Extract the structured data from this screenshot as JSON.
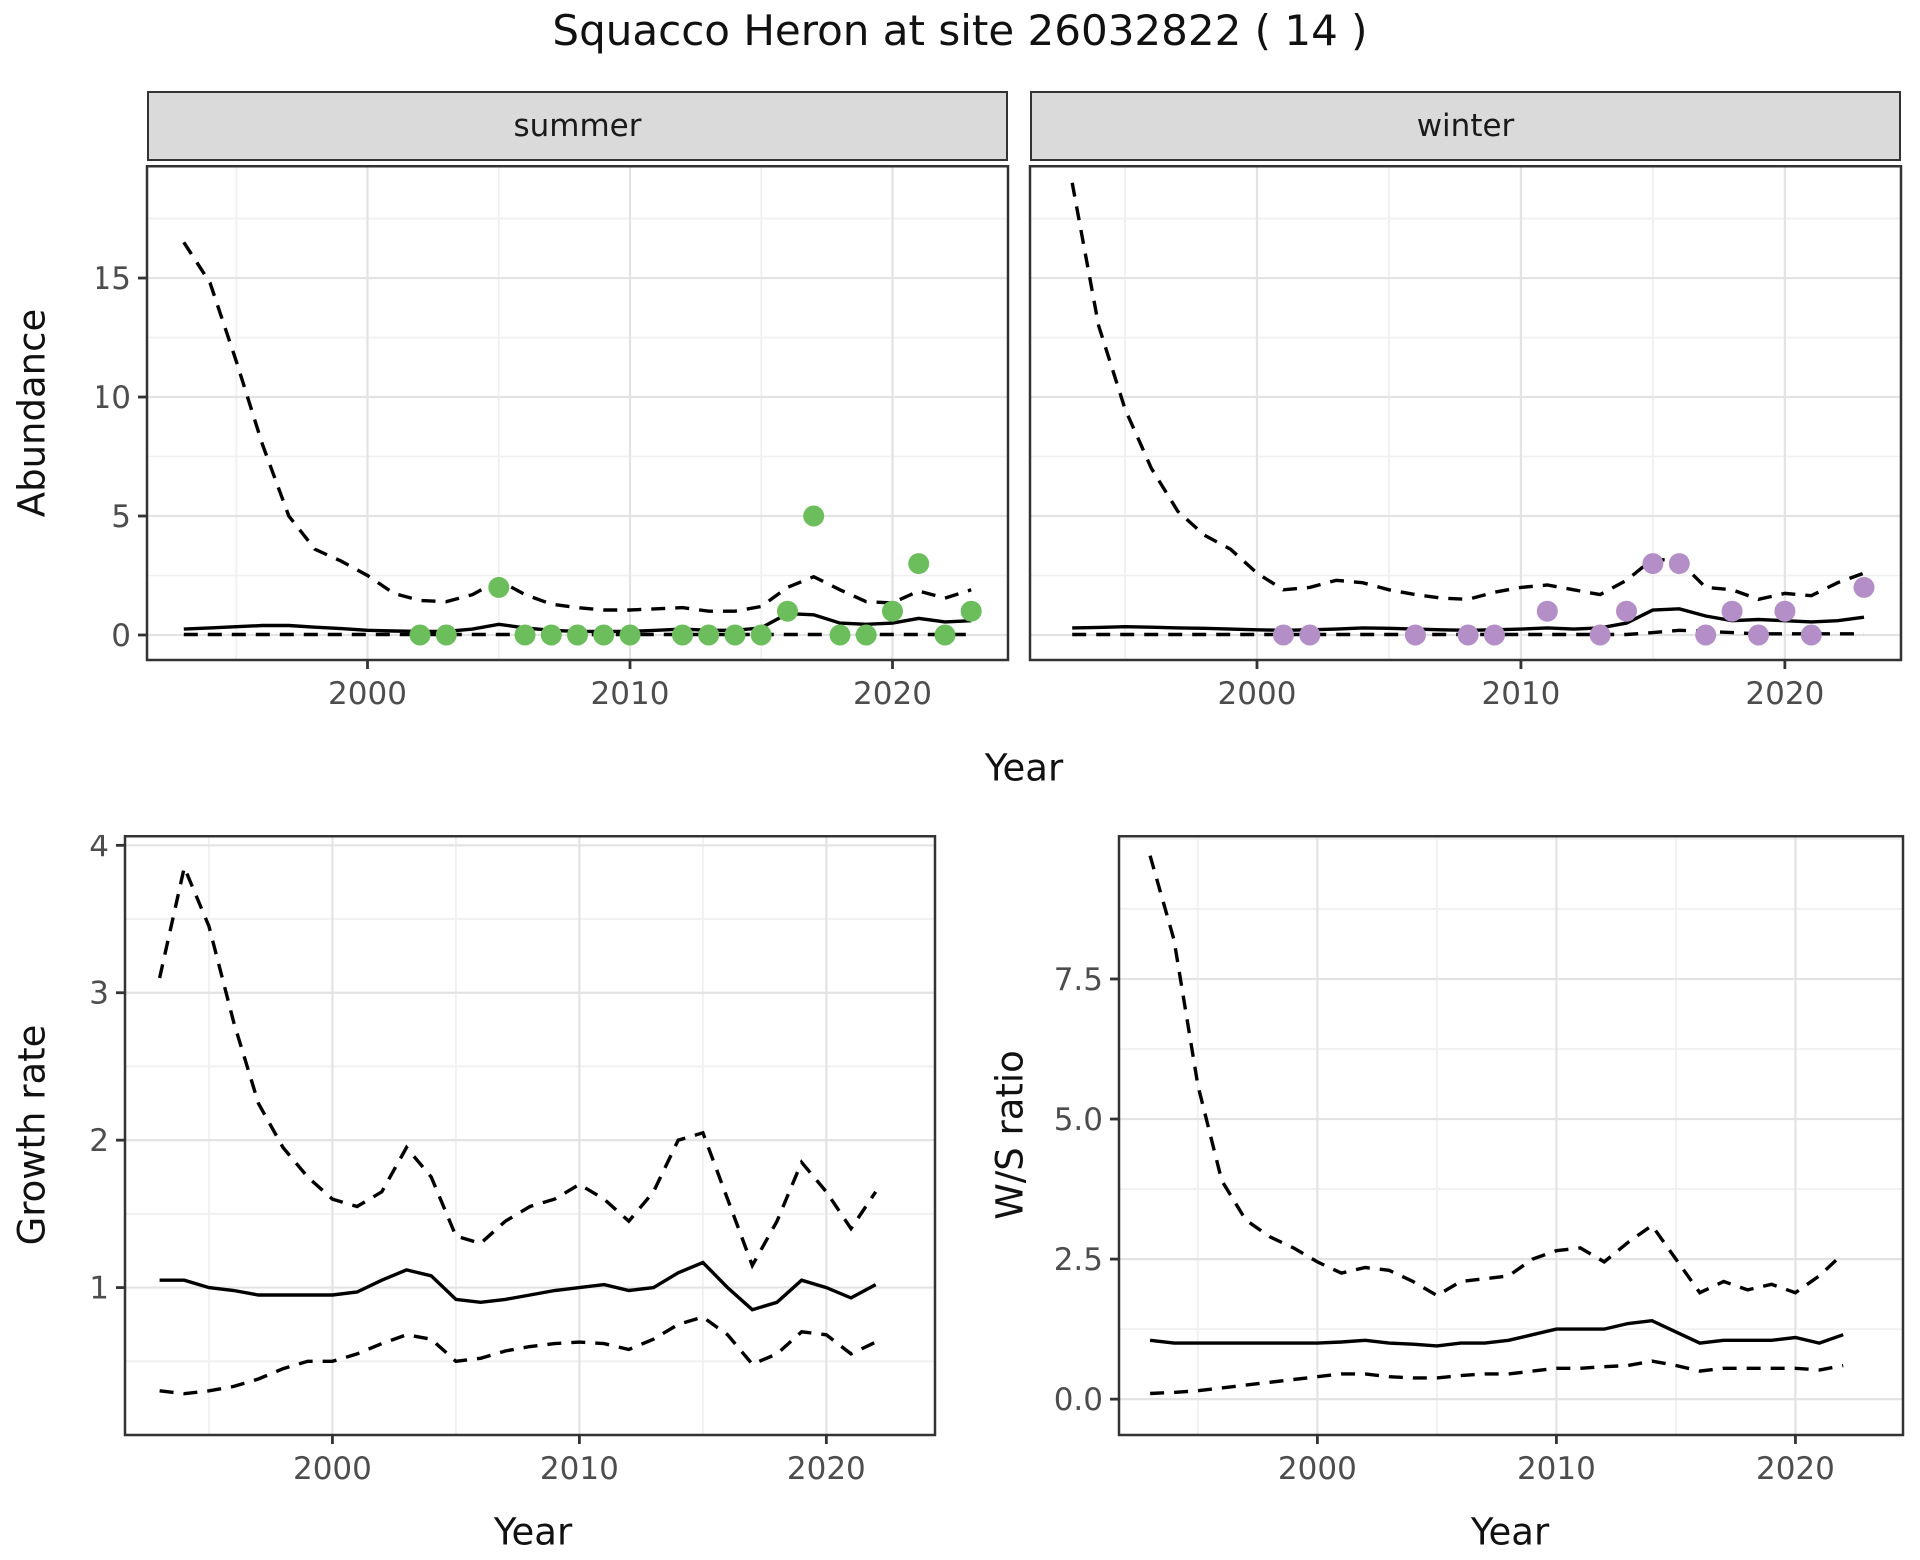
{
  "title": "Squacco Heron at site 26032822 ( 14 )",
  "colors": {
    "summer_point": "#6CBE5C",
    "winter_point": "#B48FC7",
    "line": "#000000",
    "panel_border": "#333333",
    "strip_fill": "#DADADA",
    "grid_major": "#E3E3E3",
    "grid_minor": "#F0F0F0",
    "tick_text": "#4D4D4D"
  },
  "chart_data": [
    {
      "id": "abundance-summer",
      "type": "line",
      "facet_label": "summer",
      "xlabel": "Year",
      "ylabel": "Abundance",
      "xlim": [
        1991.6,
        2024.4
      ],
      "ylim": [
        -1.05,
        19.75
      ],
      "x_ticks": [
        {
          "v": 2000,
          "label": "2000"
        },
        {
          "v": 2010,
          "label": "2010"
        },
        {
          "v": 2020,
          "label": "2020"
        }
      ],
      "x_minor": [
        1995,
        2005,
        2015,
        2025
      ],
      "y_ticks": [
        {
          "v": 0,
          "label": "0"
        },
        {
          "v": 5,
          "label": "5"
        },
        {
          "v": 10,
          "label": "10"
        },
        {
          "v": 15,
          "label": "15"
        }
      ],
      "y_minor": [
        2.5,
        7.5,
        12.5,
        17.5
      ],
      "show_y_labels": true,
      "grid": true,
      "legend": "none",
      "years": [
        1993,
        1994,
        1995,
        1996,
        1997,
        1998,
        1999,
        2000,
        2001,
        2002,
        2003,
        2004,
        2005,
        2006,
        2007,
        2008,
        2009,
        2010,
        2011,
        2012,
        2013,
        2014,
        2015,
        2016,
        2017,
        2018,
        2019,
        2020,
        2021,
        2022,
        2023
      ],
      "series": [
        {
          "name": "median",
          "style": "solid",
          "values": [
            0.25,
            0.3,
            0.35,
            0.4,
            0.4,
            0.33,
            0.27,
            0.2,
            0.17,
            0.15,
            0.15,
            0.25,
            0.45,
            0.3,
            0.2,
            0.15,
            0.15,
            0.15,
            0.2,
            0.25,
            0.2,
            0.2,
            0.3,
            0.9,
            0.85,
            0.5,
            0.45,
            0.5,
            0.7,
            0.55,
            0.6
          ]
        },
        {
          "name": "upper_95ci",
          "style": "dashed",
          "values": [
            16.5,
            14.8,
            11.5,
            8.0,
            5.0,
            3.6,
            3.1,
            2.5,
            1.75,
            1.45,
            1.4,
            1.7,
            2.3,
            1.7,
            1.3,
            1.15,
            1.05,
            1.05,
            1.1,
            1.15,
            1.0,
            1.0,
            1.2,
            2.0,
            2.45,
            1.9,
            1.4,
            1.35,
            1.85,
            1.55,
            1.9
          ]
        },
        {
          "name": "lower_95ci",
          "style": "dashed",
          "values": [
            0.02,
            0.02,
            0.02,
            0.02,
            0.02,
            0.02,
            0.02,
            0.02,
            0.02,
            0.02,
            0.02,
            0.02,
            0.02,
            0.02,
            0.02,
            0.02,
            0.02,
            0.02,
            0.02,
            0.02,
            0.02,
            0.02,
            0.02,
            0.02,
            0.02,
            0.02,
            0.02,
            0.02,
            0.02,
            0.02,
            0.02
          ]
        }
      ],
      "points": {
        "name": "observed-counts-summer",
        "color_key": "summer_point",
        "data": [
          [
            2002,
            0
          ],
          [
            2003,
            0
          ],
          [
            2005,
            2
          ],
          [
            2006,
            0
          ],
          [
            2007,
            0
          ],
          [
            2008,
            0
          ],
          [
            2009,
            0
          ],
          [
            2010,
            0
          ],
          [
            2012,
            0
          ],
          [
            2013,
            0
          ],
          [
            2014,
            0
          ],
          [
            2015,
            0
          ],
          [
            2016,
            1
          ],
          [
            2017,
            5
          ],
          [
            2018,
            0
          ],
          [
            2019,
            0
          ],
          [
            2020,
            1
          ],
          [
            2021,
            3
          ],
          [
            2022,
            0
          ],
          [
            2023,
            1
          ]
        ]
      }
    },
    {
      "id": "abundance-winter",
      "type": "line",
      "facet_label": "winter",
      "xlabel": "Year",
      "ylabel": "Abundance",
      "xlim": [
        1991.4,
        2024.4
      ],
      "ylim": [
        -1.05,
        19.75
      ],
      "x_ticks": [
        {
          "v": 2000,
          "label": "2000"
        },
        {
          "v": 2010,
          "label": "2010"
        },
        {
          "v": 2020,
          "label": "2020"
        }
      ],
      "x_minor": [
        1995,
        2005,
        2015,
        2025
      ],
      "y_ticks": [
        {
          "v": 0,
          "label": "0"
        },
        {
          "v": 5,
          "label": "5"
        },
        {
          "v": 10,
          "label": "10"
        },
        {
          "v": 15,
          "label": "15"
        }
      ],
      "y_minor": [
        2.5,
        7.5,
        12.5,
        17.5
      ],
      "show_y_labels": false,
      "grid": true,
      "legend": "none",
      "years": [
        1993,
        1994,
        1995,
        1996,
        1997,
        1998,
        1999,
        2000,
        2001,
        2002,
        2003,
        2004,
        2005,
        2006,
        2007,
        2008,
        2009,
        2010,
        2011,
        2012,
        2013,
        2014,
        2015,
        2016,
        2017,
        2018,
        2019,
        2020,
        2021,
        2022,
        2023
      ],
      "series": [
        {
          "name": "median",
          "style": "solid",
          "values": [
            0.3,
            0.32,
            0.35,
            0.33,
            0.3,
            0.28,
            0.25,
            0.22,
            0.2,
            0.22,
            0.25,
            0.3,
            0.28,
            0.25,
            0.22,
            0.2,
            0.22,
            0.25,
            0.3,
            0.25,
            0.3,
            0.5,
            1.05,
            1.1,
            0.8,
            0.6,
            0.65,
            0.6,
            0.55,
            0.6,
            0.75
          ]
        },
        {
          "name": "upper_95ci",
          "style": "dashed",
          "values": [
            19.0,
            13.0,
            9.5,
            7.0,
            5.2,
            4.2,
            3.6,
            2.6,
            1.9,
            2.0,
            2.3,
            2.2,
            1.9,
            1.7,
            1.55,
            1.5,
            1.8,
            2.0,
            2.1,
            1.9,
            1.7,
            2.3,
            3.2,
            3.1,
            2.0,
            1.9,
            1.5,
            1.75,
            1.65,
            2.2,
            2.6
          ]
        },
        {
          "name": "lower_95ci",
          "style": "dashed",
          "values": [
            0.02,
            0.02,
            0.02,
            0.02,
            0.02,
            0.02,
            0.02,
            0.02,
            0.02,
            0.02,
            0.02,
            0.02,
            0.02,
            0.02,
            0.02,
            0.02,
            0.02,
            0.02,
            0.02,
            0.02,
            0.02,
            0.02,
            0.1,
            0.2,
            0.15,
            0.1,
            0.05,
            0.05,
            0.05,
            0.05,
            0.05
          ]
        }
      ],
      "points": {
        "name": "observed-counts-winter",
        "color_key": "winter_point",
        "data": [
          [
            2001,
            0
          ],
          [
            2002,
            0
          ],
          [
            2006,
            0
          ],
          [
            2008,
            0
          ],
          [
            2009,
            0
          ],
          [
            2011,
            1
          ],
          [
            2013,
            0
          ],
          [
            2014,
            1
          ],
          [
            2015,
            3
          ],
          [
            2016,
            3
          ],
          [
            2017,
            0
          ],
          [
            2018,
            1
          ],
          [
            2019,
            0
          ],
          [
            2020,
            1
          ],
          [
            2021,
            0
          ],
          [
            2023,
            2
          ]
        ]
      }
    },
    {
      "id": "growth-rate",
      "type": "line",
      "facet_label": "",
      "xlabel": "Year",
      "ylabel": "Growth rate",
      "xlim": [
        1991.6,
        2024.4
      ],
      "ylim": [
        0.0,
        4.07
      ],
      "x_ticks": [
        {
          "v": 2000,
          "label": "2000"
        },
        {
          "v": 2010,
          "label": "2010"
        },
        {
          "v": 2020,
          "label": "2020"
        }
      ],
      "x_minor": [
        1995,
        2005,
        2015,
        2025
      ],
      "y_ticks": [
        {
          "v": 1,
          "label": "1"
        },
        {
          "v": 2,
          "label": "2"
        },
        {
          "v": 3,
          "label": "3"
        },
        {
          "v": 4,
          "label": "4"
        }
      ],
      "y_minor": [
        0.5,
        1.5,
        2.5,
        3.5
      ],
      "show_y_labels": true,
      "grid": true,
      "legend": "none",
      "years": [
        1993,
        1994,
        1995,
        1996,
        1997,
        1998,
        1999,
        2000,
        2001,
        2002,
        2003,
        2004,
        2005,
        2006,
        2007,
        2008,
        2009,
        2010,
        2011,
        2012,
        2013,
        2014,
        2015,
        2016,
        2017,
        2018,
        2019,
        2020,
        2021,
        2022
      ],
      "series": [
        {
          "name": "median",
          "style": "solid",
          "values": [
            1.05,
            1.05,
            1.0,
            0.98,
            0.95,
            0.95,
            0.95,
            0.95,
            0.97,
            1.05,
            1.12,
            1.08,
            0.92,
            0.9,
            0.92,
            0.95,
            0.98,
            1.0,
            1.02,
            0.98,
            1.0,
            1.1,
            1.17,
            1.0,
            0.85,
            0.9,
            1.05,
            1.0,
            0.93,
            1.02
          ]
        },
        {
          "name": "upper_95ci",
          "style": "dashed",
          "values": [
            3.1,
            3.85,
            3.45,
            2.8,
            2.25,
            1.95,
            1.75,
            1.6,
            1.55,
            1.65,
            1.95,
            1.75,
            1.35,
            1.3,
            1.45,
            1.55,
            1.6,
            1.7,
            1.6,
            1.45,
            1.65,
            2.0,
            2.05,
            1.6,
            1.15,
            1.45,
            1.85,
            1.65,
            1.4,
            1.65
          ]
        },
        {
          "name": "lower_95ci",
          "style": "dashed",
          "values": [
            0.3,
            0.28,
            0.3,
            0.33,
            0.38,
            0.45,
            0.5,
            0.5,
            0.55,
            0.62,
            0.68,
            0.65,
            0.5,
            0.52,
            0.57,
            0.6,
            0.62,
            0.63,
            0.62,
            0.58,
            0.65,
            0.75,
            0.8,
            0.68,
            0.48,
            0.55,
            0.7,
            0.68,
            0.55,
            0.63
          ]
        }
      ],
      "points": null
    },
    {
      "id": "ws-ratio",
      "type": "line",
      "facet_label": "",
      "xlabel": "Year",
      "ylabel": "W/S ratio",
      "xlim": [
        1991.7,
        2024.5
      ],
      "ylim": [
        -0.64,
        10.07
      ],
      "x_ticks": [
        {
          "v": 2000,
          "label": "2000"
        },
        {
          "v": 2010,
          "label": "2010"
        },
        {
          "v": 2020,
          "label": "2020"
        }
      ],
      "x_minor": [
        1995,
        2005,
        2015,
        2025
      ],
      "y_ticks": [
        {
          "v": 0,
          "label": "0.0"
        },
        {
          "v": 2.5,
          "label": "2.5"
        },
        {
          "v": 5,
          "label": "5.0"
        },
        {
          "v": 7.5,
          "label": "7.5"
        }
      ],
      "y_minor": [
        1.25,
        3.75,
        6.25,
        8.75,
        10.0
      ],
      "show_y_labels": true,
      "grid": true,
      "legend": "none",
      "years": [
        1993,
        1994,
        1995,
        1996,
        1997,
        1998,
        1999,
        2000,
        2001,
        2002,
        2003,
        2004,
        2005,
        2006,
        2007,
        2008,
        2009,
        2010,
        2011,
        2012,
        2013,
        2014,
        2015,
        2016,
        2017,
        2018,
        2019,
        2020,
        2021,
        2022
      ],
      "series": [
        {
          "name": "median",
          "style": "solid",
          "values": [
            1.05,
            1.0,
            1.0,
            1.0,
            1.0,
            1.0,
            1.0,
            1.0,
            1.02,
            1.05,
            1.0,
            0.98,
            0.95,
            1.0,
            1.0,
            1.05,
            1.15,
            1.25,
            1.25,
            1.25,
            1.35,
            1.4,
            1.2,
            1.0,
            1.05,
            1.05,
            1.05,
            1.1,
            1.0,
            1.15
          ]
        },
        {
          "name": "upper_95ci",
          "style": "dashed",
          "values": [
            9.7,
            8.2,
            5.6,
            3.9,
            3.2,
            2.9,
            2.7,
            2.45,
            2.25,
            2.35,
            2.3,
            2.1,
            1.85,
            2.1,
            2.15,
            2.2,
            2.5,
            2.65,
            2.7,
            2.45,
            2.8,
            3.1,
            2.5,
            1.9,
            2.1,
            1.95,
            2.05,
            1.9,
            2.2,
            2.6
          ]
        },
        {
          "name": "lower_95ci",
          "style": "dashed",
          "values": [
            0.1,
            0.12,
            0.15,
            0.2,
            0.25,
            0.3,
            0.35,
            0.4,
            0.45,
            0.45,
            0.4,
            0.38,
            0.38,
            0.42,
            0.45,
            0.45,
            0.5,
            0.55,
            0.55,
            0.58,
            0.6,
            0.68,
            0.6,
            0.5,
            0.55,
            0.55,
            0.55,
            0.55,
            0.52,
            0.6
          ]
        }
      ],
      "points": null
    }
  ]
}
